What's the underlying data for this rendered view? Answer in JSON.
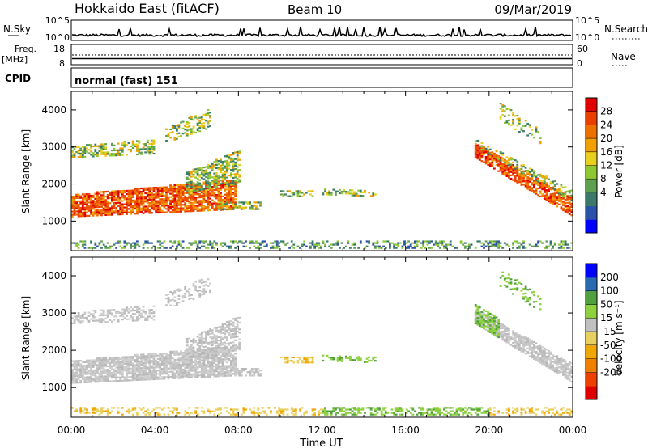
{
  "header": {
    "station": "Hokkaido East (fitACF)",
    "beam": "Beam 10",
    "date": "09/Mar/2019"
  },
  "top_panels": {
    "nsky_label": "N.Sky",
    "nsky_ticks": [
      "10^5",
      "10^0"
    ],
    "nsearch_label": "N.Search",
    "nsearch_ticks": [
      "10^5",
      "10^0"
    ],
    "freq_label_line1": "Freq.",
    "freq_label_line2": "[MHz]",
    "freq_ticks": [
      "18",
      "8"
    ],
    "nave_label": "Nave",
    "nave_ticks": [
      "60",
      "0"
    ],
    "cpid_label": "CPID",
    "cpid_value": "normal (fast) 151"
  },
  "chart_data": [
    {
      "type": "heatmap",
      "panel": "power",
      "ylabel": "Slant Range [km]",
      "ylim": [
        200,
        4500
      ],
      "yticks": [
        "4000",
        "3000",
        "2000",
        "1000"
      ],
      "xlim_hours": [
        0,
        24
      ],
      "colorbar_label": "Power [dB]",
      "colorbar_ticks": [
        "28",
        "24",
        "20",
        "16",
        "12",
        "8",
        "4"
      ],
      "colorbar_colors": [
        "#0000ff",
        "#2a52a8",
        "#3a7a6a",
        "#5fa050",
        "#8ec832",
        "#e8d020",
        "#f0a000",
        "#ee7000",
        "#e84000",
        "#e00000"
      ]
    },
    {
      "type": "heatmap",
      "panel": "velocity",
      "ylabel": "Slant Range [km]",
      "ylim": [
        200,
        4500
      ],
      "yticks": [
        "4000",
        "3000",
        "2000",
        "1000"
      ],
      "xlim_hours": [
        0,
        24
      ],
      "xticks": [
        "00:00",
        "04:00",
        "08:00",
        "12:00",
        "16:00",
        "20:00",
        "00:00"
      ],
      "xlabel": "Time UT",
      "colorbar_label": "Velocity [m s⁻¹]",
      "colorbar_ticks": [
        "200",
        "100",
        "50",
        "15",
        "-15",
        "-50",
        "-100",
        "-200"
      ],
      "colorbar_colors": [
        "#e00000",
        "#ee4000",
        "#f08000",
        "#f0a800",
        "#e8d060",
        "#c0c0c0",
        "#8ed040",
        "#50a040",
        "#2a6ab0",
        "#0000ff"
      ]
    }
  ]
}
